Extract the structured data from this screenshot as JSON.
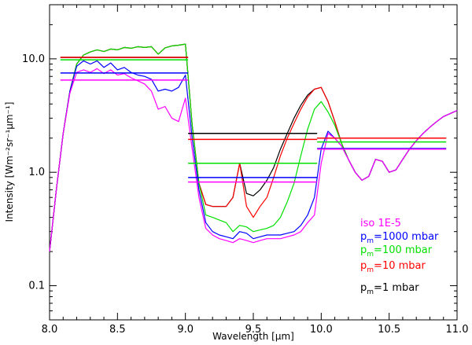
{
  "chart_data": {
    "type": "line",
    "title": "",
    "xlabel": "Wavelength [μm]",
    "ylabel": "Intensity [Wm⁻²sr⁻¹μm⁻¹]",
    "xlim": [
      8.0,
      11.0
    ],
    "ylim": [
      0.05,
      30
    ],
    "yscale": "log",
    "x_ticks": [
      8.0,
      8.5,
      9.0,
      9.5,
      10.0,
      10.5,
      11.0
    ],
    "x_tick_labels": [
      "8.0",
      "8.5",
      "9.0",
      "9.5",
      "10.0",
      "10.5",
      "11.0"
    ],
    "y_ticks": [
      0.1,
      1.0,
      10.0
    ],
    "y_tick_labels": [
      "0.1",
      "1.0",
      "10.0"
    ],
    "grid": false,
    "legend_position": "bottom-right",
    "series": [
      {
        "name": "iso 1E-5",
        "color": "#ff00ff",
        "x": [
          8.0,
          8.05,
          8.1,
          8.15,
          8.2,
          8.25,
          8.3,
          8.35,
          8.4,
          8.45,
          8.5,
          8.55,
          8.6,
          8.65,
          8.7,
          8.75,
          8.8,
          8.85,
          8.9,
          8.95,
          9.0,
          9.05,
          9.1,
          9.15,
          9.2,
          9.25,
          9.3,
          9.35,
          9.4,
          9.45,
          9.5,
          9.55,
          9.6,
          9.65,
          9.7,
          9.75,
          9.8,
          9.85,
          9.9,
          9.95,
          10.0,
          10.05,
          10.1,
          10.15,
          10.2,
          10.25,
          10.3,
          10.35,
          10.4,
          10.45,
          10.5,
          10.55,
          10.6,
          10.65,
          10.7,
          10.75,
          10.8,
          10.85,
          10.9,
          10.95,
          11.0
        ],
        "y": [
          0.2,
          0.7,
          2.2,
          5.0,
          7.6,
          8.0,
          7.6,
          8.2,
          7.4,
          8.0,
          7.2,
          7.4,
          6.8,
          6.4,
          6.0,
          5.2,
          3.6,
          3.8,
          3.0,
          2.8,
          4.5,
          1.6,
          0.6,
          0.32,
          0.28,
          0.26,
          0.25,
          0.24,
          0.26,
          0.25,
          0.24,
          0.25,
          0.26,
          0.26,
          0.26,
          0.27,
          0.28,
          0.3,
          0.36,
          0.42,
          1.2,
          2.2,
          2.0,
          1.7,
          1.3,
          1.0,
          0.85,
          0.92,
          1.3,
          1.25,
          1.0,
          1.05,
          1.3,
          1.6,
          1.9,
          2.2,
          2.5,
          2.8,
          3.1,
          3.3,
          3.5
        ]
      },
      {
        "name": "pm=1000 mbar",
        "color": "#0000ff",
        "x": [
          8.0,
          8.05,
          8.1,
          8.15,
          8.2,
          8.25,
          8.3,
          8.35,
          8.4,
          8.45,
          8.5,
          8.55,
          8.6,
          8.65,
          8.7,
          8.75,
          8.8,
          8.85,
          8.9,
          8.95,
          9.0,
          9.05,
          9.1,
          9.15,
          9.2,
          9.25,
          9.3,
          9.35,
          9.4,
          9.45,
          9.5,
          9.55,
          9.6,
          9.65,
          9.7,
          9.75,
          9.8,
          9.85,
          9.9,
          9.95,
          10.0,
          10.05,
          10.1,
          10.15,
          10.2,
          10.25,
          10.3,
          10.35,
          10.4,
          10.45,
          10.5,
          10.55,
          10.6,
          10.65,
          10.7,
          10.75,
          10.8,
          10.85,
          10.9,
          10.95,
          11.0
        ],
        "y": [
          0.2,
          0.7,
          2.2,
          5.2,
          8.6,
          9.6,
          9.0,
          9.6,
          8.4,
          9.2,
          8.0,
          8.4,
          7.6,
          7.2,
          7.0,
          6.6,
          5.2,
          5.4,
          5.2,
          5.6,
          7.2,
          2.0,
          0.7,
          0.36,
          0.3,
          0.28,
          0.27,
          0.26,
          0.3,
          0.29,
          0.26,
          0.27,
          0.28,
          0.28,
          0.28,
          0.29,
          0.3,
          0.34,
          0.42,
          0.6,
          1.6,
          2.3,
          2.0,
          1.7,
          1.3,
          1.0,
          0.85,
          0.92,
          1.3,
          1.25,
          1.0,
          1.05,
          1.3,
          1.6,
          1.9,
          2.2,
          2.5,
          2.8,
          3.1,
          3.3,
          3.5
        ]
      },
      {
        "name": "pm=100 mbar",
        "color": "#00e000",
        "x": [
          8.0,
          8.05,
          8.1,
          8.15,
          8.2,
          8.25,
          8.3,
          8.35,
          8.4,
          8.45,
          8.5,
          8.55,
          8.6,
          8.65,
          8.7,
          8.75,
          8.8,
          8.85,
          8.9,
          8.95,
          9.0,
          9.05,
          9.1,
          9.15,
          9.2,
          9.25,
          9.3,
          9.35,
          9.4,
          9.45,
          9.5,
          9.55,
          9.6,
          9.65,
          9.7,
          9.75,
          9.8,
          9.85,
          9.9,
          9.95,
          10.0,
          10.05,
          10.1,
          10.15,
          10.2,
          10.25,
          10.3,
          10.35,
          10.4,
          10.45,
          10.5,
          10.55,
          10.6,
          10.65,
          10.7,
          10.75,
          10.8,
          10.85,
          10.9,
          10.95,
          11.0
        ],
        "y": [
          0.2,
          0.7,
          2.2,
          5.2,
          9.0,
          10.8,
          11.5,
          12.0,
          11.6,
          12.2,
          12.0,
          12.6,
          12.4,
          12.8,
          12.6,
          12.8,
          11.0,
          12.5,
          13.0,
          13.2,
          13.5,
          2.6,
          0.8,
          0.42,
          0.4,
          0.38,
          0.36,
          0.3,
          0.34,
          0.33,
          0.3,
          0.31,
          0.32,
          0.34,
          0.4,
          0.55,
          0.8,
          1.4,
          2.4,
          3.6,
          4.2,
          3.4,
          2.6,
          1.8,
          1.3,
          1.0,
          0.85,
          0.92,
          1.3,
          1.25,
          1.0,
          1.05,
          1.3,
          1.6,
          1.9,
          2.2,
          2.5,
          2.8,
          3.1,
          3.3,
          3.5
        ]
      },
      {
        "name": "pm=10 mbar",
        "color": "#ff0000",
        "x": [
          8.0,
          8.05,
          8.1,
          8.15,
          8.2,
          8.25,
          8.3,
          8.35,
          8.4,
          8.45,
          8.5,
          8.55,
          8.6,
          8.65,
          8.7,
          8.75,
          8.8,
          8.85,
          8.9,
          8.95,
          9.0,
          9.05,
          9.1,
          9.15,
          9.2,
          9.25,
          9.3,
          9.35,
          9.4,
          9.45,
          9.5,
          9.55,
          9.6,
          9.65,
          9.7,
          9.75,
          9.8,
          9.85,
          9.9,
          9.95,
          10.0,
          10.05,
          10.1,
          10.15,
          10.2,
          10.25,
          10.3,
          10.35,
          10.4,
          10.45,
          10.5,
          10.55,
          10.6,
          10.65,
          10.7,
          10.75,
          10.8,
          10.85,
          10.9,
          10.95,
          11.0
        ],
        "y": [
          0.2,
          0.7,
          2.2,
          5.2,
          9.0,
          10.8,
          11.5,
          12.0,
          11.6,
          12.2,
          12.0,
          12.6,
          12.4,
          12.8,
          12.6,
          12.8,
          11.0,
          12.5,
          13.0,
          13.2,
          13.5,
          2.6,
          0.8,
          0.52,
          0.5,
          0.5,
          0.5,
          0.6,
          1.2,
          0.5,
          0.4,
          0.5,
          0.6,
          0.9,
          1.4,
          2.0,
          2.7,
          3.6,
          4.6,
          5.4,
          5.6,
          4.2,
          2.8,
          1.8,
          1.3,
          1.0,
          0.85,
          0.92,
          1.3,
          1.25,
          1.0,
          1.05,
          1.3,
          1.6,
          1.9,
          2.2,
          2.5,
          2.8,
          3.1,
          3.3,
          3.5
        ]
      },
      {
        "name": "pm=1 mbar",
        "color": "#000000",
        "x": [
          8.0,
          8.05,
          8.1,
          8.15,
          8.2,
          8.25,
          8.3,
          8.35,
          8.4,
          8.45,
          8.5,
          8.55,
          8.6,
          8.65,
          8.7,
          8.75,
          8.8,
          8.85,
          8.9,
          8.95,
          9.0,
          9.05,
          9.1,
          9.15,
          9.2,
          9.25,
          9.3,
          9.35,
          9.4,
          9.45,
          9.5,
          9.55,
          9.6,
          9.65,
          9.7,
          9.75,
          9.8,
          9.85,
          9.9,
          9.95,
          10.0,
          10.05,
          10.1,
          10.15,
          10.2,
          10.25,
          10.3,
          10.35,
          10.4,
          10.45,
          10.5,
          10.55,
          10.6,
          10.65,
          10.7,
          10.75,
          10.8,
          10.85,
          10.9,
          10.95,
          11.0
        ],
        "y": [
          0.2,
          0.7,
          2.2,
          5.2,
          9.0,
          10.8,
          11.5,
          12.0,
          11.6,
          12.2,
          12.0,
          12.6,
          12.4,
          12.8,
          12.6,
          12.8,
          11.0,
          12.5,
          13.0,
          13.2,
          13.5,
          2.6,
          0.8,
          0.52,
          0.5,
          0.5,
          0.5,
          0.6,
          1.2,
          0.65,
          0.62,
          0.7,
          0.85,
          1.1,
          1.6,
          2.2,
          3.0,
          3.9,
          4.8,
          5.4,
          5.6,
          4.2,
          2.8,
          1.8,
          1.3,
          1.0,
          0.85,
          0.92,
          1.3,
          1.25,
          1.0,
          1.05,
          1.3,
          1.6,
          1.9,
          2.2,
          2.5,
          2.8,
          3.1,
          3.3,
          3.5
        ]
      }
    ],
    "band_averages": [
      {
        "series": "pm=1 mbar",
        "color": "#000000",
        "segments": [
          {
            "x": [
              8.08,
              9.02
            ],
            "y": 10.3
          },
          {
            "x": [
              9.02,
              9.97
            ],
            "y": 2.2
          },
          {
            "x": [
              9.97,
              10.92
            ],
            "y": 2.0
          }
        ]
      },
      {
        "series": "pm=10 mbar",
        "color": "#ff0000",
        "segments": [
          {
            "x": [
              8.08,
              9.02
            ],
            "y": 10.3
          },
          {
            "x": [
              9.02,
              9.97
            ],
            "y": 1.95
          },
          {
            "x": [
              9.97,
              10.92
            ],
            "y": 2.0
          }
        ]
      },
      {
        "series": "pm=100 mbar",
        "color": "#00e000",
        "segments": [
          {
            "x": [
              8.08,
              9.02
            ],
            "y": 9.8
          },
          {
            "x": [
              9.02,
              9.97
            ],
            "y": 1.2
          },
          {
            "x": [
              9.97,
              10.92
            ],
            "y": 1.85
          }
        ]
      },
      {
        "series": "pm=1000 mbar",
        "color": "#0000ff",
        "segments": [
          {
            "x": [
              8.08,
              9.02
            ],
            "y": 7.5
          },
          {
            "x": [
              9.02,
              9.97
            ],
            "y": 0.9
          },
          {
            "x": [
              9.97,
              10.92
            ],
            "y": 1.62
          }
        ]
      },
      {
        "series": "iso 1E-5",
        "color": "#ff00ff",
        "segments": [
          {
            "x": [
              8.08,
              9.02
            ],
            "y": 6.5
          },
          {
            "x": [
              9.02,
              9.97
            ],
            "y": 0.82
          },
          {
            "x": [
              9.97,
              10.92
            ],
            "y": 1.6
          }
        ]
      }
    ],
    "legend": [
      {
        "prefix": "iso 1E-5",
        "sub": "",
        "suffix": "",
        "color": "#ff00ff"
      },
      {
        "prefix": "p",
        "sub": "m",
        "suffix": "=1000 mbar",
        "color": "#0000ff"
      },
      {
        "prefix": "p",
        "sub": "m",
        "suffix": "=100 mbar",
        "color": "#00e000"
      },
      {
        "prefix": "p",
        "sub": "m",
        "suffix": "=10 mbar",
        "color": "#ff0000"
      },
      {
        "prefix": "p",
        "sub": "m",
        "suffix": "=1 mbar",
        "color": "#000000"
      }
    ]
  }
}
